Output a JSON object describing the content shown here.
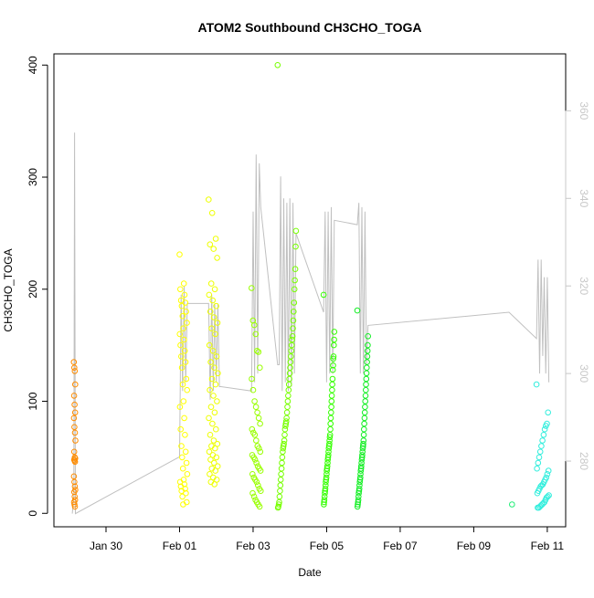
{
  "chart_data": {
    "type": "scatter",
    "title": "ATOM2 Southbound CH3CHO_TOGA",
    "xlabel": "Date",
    "ylabel": "CH3CHO_TOGA",
    "x_axis": {
      "type": "date",
      "ticks": [
        {
          "value": "2017-01-30",
          "label": "Jan 30"
        },
        {
          "value": "2017-02-01",
          "label": "Feb 01"
        },
        {
          "value": "2017-02-03",
          "label": "Feb 03"
        },
        {
          "value": "2017-02-05",
          "label": "Feb 05"
        },
        {
          "value": "2017-02-07",
          "label": "Feb 07"
        },
        {
          "value": "2017-02-09",
          "label": "Feb 09"
        },
        {
          "value": "2017-02-11",
          "label": "Feb 11"
        }
      ],
      "range": [
        "2017-01-28T14:00",
        "2017-02-11T12:00"
      ]
    },
    "y_axis_left": {
      "ticks": [
        0,
        100,
        200,
        300,
        400
      ],
      "range": [
        -12,
        410
      ]
    },
    "y_axis_right": {
      "ticks": [
        280,
        300,
        320,
        340,
        360
      ],
      "range": [
        265,
        373
      ],
      "color": "#c8c8c8"
    },
    "grid": false,
    "point_series": [
      {
        "color": "#ff8c00",
        "time": {
          "start": "2017-01-29T03:00",
          "end": "2017-01-29T04:00"
        },
        "values": [
          135,
          130,
          127,
          115,
          105,
          97,
          90,
          85,
          77,
          72,
          65,
          55,
          50,
          49,
          48,
          47,
          46,
          33,
          28,
          24,
          21,
          19,
          15,
          12,
          10,
          8,
          6
        ]
      },
      {
        "color": "#ffff00",
        "time": {
          "start": "2017-02-01T00:00",
          "end": "2017-02-01T05:00"
        },
        "values": [
          231,
          205,
          200,
          195,
          190,
          188,
          185,
          180,
          176,
          170,
          165,
          160,
          155,
          150,
          145,
          140,
          135,
          130,
          120,
          115,
          110,
          100,
          95,
          85,
          75,
          70,
          60,
          55,
          50,
          45,
          40,
          35,
          30,
          28,
          26,
          24,
          22,
          20,
          18,
          15,
          10,
          8
        ]
      },
      {
        "color": "#eeff00",
        "time": {
          "start": "2017-02-01T19:00",
          "end": "2017-02-02T01:00"
        },
        "values": [
          280,
          268,
          245,
          240,
          236,
          228,
          205,
          200,
          195,
          190,
          185,
          180,
          175,
          170,
          165,
          160,
          150,
          145,
          140,
          135,
          130,
          125,
          120,
          115,
          110,
          105,
          100,
          95,
          90,
          85,
          80,
          75,
          70,
          65,
          62,
          60,
          58,
          55,
          52,
          50,
          48,
          45,
          42,
          40,
          38,
          35,
          32,
          30,
          28,
          26
        ]
      },
      {
        "color": "#99ff00",
        "time": {
          "start": "2017-02-02T23:00",
          "end": "2017-02-03T05:00"
        },
        "values": [
          201,
          172,
          168,
          160,
          145,
          144,
          130,
          120,
          110,
          100,
          95,
          90,
          85,
          80,
          75,
          72,
          70,
          65,
          60,
          58,
          55,
          52,
          50,
          48,
          45,
          42,
          40,
          38,
          35,
          32,
          30,
          28,
          25,
          22,
          20,
          18,
          15,
          12,
          10,
          8,
          6
        ]
      },
      {
        "color": "#77ff00",
        "time": {
          "start": "2017-02-03T16:00",
          "end": "2017-02-04T04:00"
        },
        "values": [
          400,
          252,
          238,
          218,
          208,
          200,
          188,
          180,
          172,
          165,
          158,
          155,
          150,
          145,
          140,
          135,
          130,
          125,
          120,
          115,
          110,
          105,
          100,
          95,
          90,
          85,
          82,
          80,
          78,
          75,
          70,
          65,
          62,
          60,
          58,
          55,
          50,
          45,
          40,
          35,
          30,
          25,
          20,
          15,
          10,
          8,
          6,
          5
        ]
      },
      {
        "color": "#33ff00",
        "time": {
          "start": "2017-02-04T22:00",
          "end": "2017-02-05T05:00"
        },
        "values": [
          195,
          162,
          155,
          150,
          140,
          138,
          132,
          128,
          120,
          115,
          110,
          105,
          100,
          95,
          90,
          85,
          80,
          75,
          70,
          68,
          65,
          62,
          60,
          58,
          55,
          52,
          50,
          48,
          45,
          42,
          40,
          38,
          35,
          32,
          30,
          28,
          25,
          22,
          20,
          18,
          15,
          12,
          10,
          8
        ]
      },
      {
        "color": "#11ee22",
        "time": {
          "start": "2017-02-05T20:00",
          "end": "2017-02-06T03:00"
        },
        "values": [
          181,
          158,
          150,
          145,
          140,
          135,
          130,
          125,
          120,
          115,
          110,
          105,
          100,
          95,
          90,
          85,
          80,
          75,
          70,
          65,
          62,
          60,
          58,
          55,
          52,
          50,
          48,
          45,
          42,
          40,
          38,
          35,
          32,
          30,
          28,
          25,
          22,
          20,
          18,
          15,
          12,
          10,
          8,
          6
        ]
      },
      {
        "color": "#22ee77",
        "time": {
          "start": "2017-02-10T01:00",
          "end": "2017-02-10T01:00"
        },
        "values": [
          8
        ]
      },
      {
        "color": "#33eedd",
        "time": {
          "start": "2017-02-10T17:00",
          "end": "2017-02-11T01:00"
        },
        "values": [
          115,
          90,
          80,
          78,
          75,
          70,
          65,
          60,
          55,
          50,
          45,
          40,
          38,
          35,
          32,
          30,
          28,
          26,
          25,
          24,
          22,
          20,
          18,
          16,
          15,
          14,
          12,
          10,
          9,
          8,
          7,
          6,
          5,
          5
        ]
      }
    ],
    "line_series": {
      "color": "#c0c0c0",
      "axis": "right",
      "points": [
        [
          "2017-01-29T02:00",
          268
        ],
        [
          "2017-01-29T03:00",
          272
        ],
        [
          "2017-01-29T03:30",
          355
        ],
        [
          "2017-01-29T04:00",
          268
        ],
        [
          "2017-02-01T00:00",
          281
        ],
        [
          "2017-02-01T01:00",
          318
        ],
        [
          "2017-02-01T02:00",
          296
        ],
        [
          "2017-02-01T03:00",
          320
        ],
        [
          "2017-02-01T04:00",
          298
        ],
        [
          "2017-02-01T05:00",
          316
        ],
        [
          "2017-02-01T19:00",
          316
        ],
        [
          "2017-02-01T20:00",
          294
        ],
        [
          "2017-02-01T21:00",
          318
        ],
        [
          "2017-02-01T22:00",
          296
        ],
        [
          "2017-02-01T23:00",
          316
        ],
        [
          "2017-02-02T00:00",
          298
        ],
        [
          "2017-02-02T01:00",
          316
        ],
        [
          "2017-02-02T02:00",
          297
        ],
        [
          "2017-02-02T03:00",
          297
        ],
        [
          "2017-02-02T23:00",
          296
        ],
        [
          "2017-02-03T00:00",
          337
        ],
        [
          "2017-02-03T01:00",
          298
        ],
        [
          "2017-02-03T02:00",
          350
        ],
        [
          "2017-02-03T03:00",
          300
        ],
        [
          "2017-02-03T04:00",
          348
        ],
        [
          "2017-02-03T05:00",
          338
        ],
        [
          "2017-02-03T16:00",
          302
        ],
        [
          "2017-02-03T17:00",
          302
        ],
        [
          "2017-02-03T18:00",
          345
        ],
        [
          "2017-02-03T19:00",
          296
        ],
        [
          "2017-02-03T20:00",
          340
        ],
        [
          "2017-02-03T21:00",
          298
        ],
        [
          "2017-02-03T22:00",
          339
        ],
        [
          "2017-02-03T23:00",
          296
        ],
        [
          "2017-02-04T00:00",
          340
        ],
        [
          "2017-02-04T01:00",
          297
        ],
        [
          "2017-02-04T02:00",
          339
        ],
        [
          "2017-02-04T03:00",
          300
        ],
        [
          "2017-02-04T04:00",
          332
        ],
        [
          "2017-02-04T22:00",
          314
        ],
        [
          "2017-02-04T23:00",
          337
        ],
        [
          "2017-02-05T00:00",
          298
        ],
        [
          "2017-02-05T01:00",
          337
        ],
        [
          "2017-02-05T02:00",
          300
        ],
        [
          "2017-02-05T03:00",
          338
        ],
        [
          "2017-02-05T04:00",
          300
        ],
        [
          "2017-02-05T05:00",
          335
        ],
        [
          "2017-02-05T20:00",
          334
        ],
        [
          "2017-02-05T21:00",
          339
        ],
        [
          "2017-02-05T22:00",
          300
        ],
        [
          "2017-02-05T23:00",
          338
        ],
        [
          "2017-02-06T00:00",
          300
        ],
        [
          "2017-02-06T01:00",
          337
        ],
        [
          "2017-02-06T02:00",
          302
        ],
        [
          "2017-02-06T03:00",
          311
        ],
        [
          "2017-02-09T23:00",
          314
        ],
        [
          "2017-02-10T17:00",
          308
        ],
        [
          "2017-02-10T18:00",
          326
        ],
        [
          "2017-02-10T19:00",
          300
        ],
        [
          "2017-02-10T20:00",
          326
        ],
        [
          "2017-02-10T21:00",
          304
        ],
        [
          "2017-02-10T22:00",
          322
        ],
        [
          "2017-02-10T23:00",
          300
        ],
        [
          "2017-02-11T00:00",
          322
        ],
        [
          "2017-02-11T01:00",
          298
        ]
      ]
    }
  }
}
